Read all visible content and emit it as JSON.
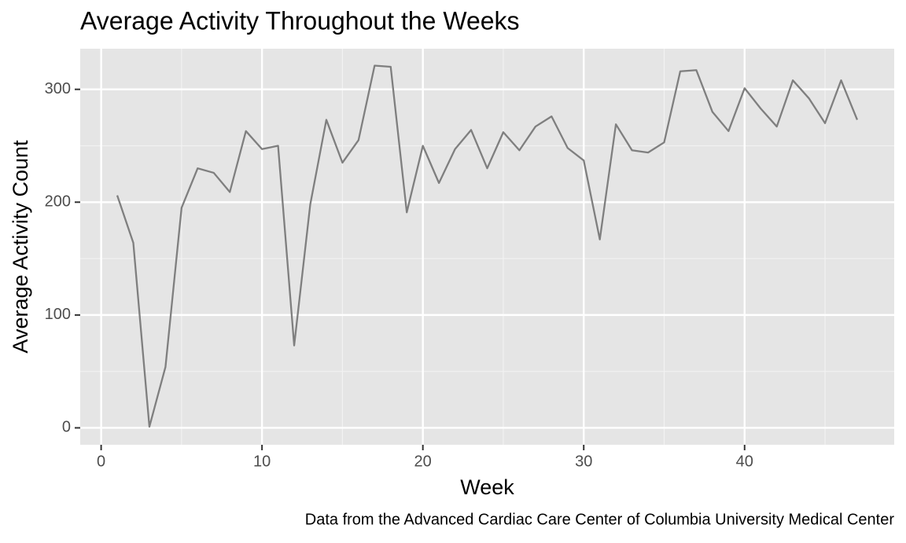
{
  "chart_data": {
    "type": "line",
    "title": "Average Activity Throughout the Weeks",
    "x_label": "Week",
    "y_label": "Average Activity Count",
    "caption": "Data from the Advanced Cardiac Care Center of Columbia University Medical Center",
    "x": [
      1,
      2,
      3,
      4,
      5,
      6,
      7,
      8,
      9,
      10,
      11,
      12,
      13,
      14,
      15,
      16,
      17,
      18,
      19,
      20,
      21,
      22,
      23,
      24,
      25,
      26,
      27,
      28,
      29,
      30,
      31,
      32,
      33,
      34,
      35,
      36,
      37,
      38,
      39,
      40,
      41,
      42,
      43,
      44,
      45,
      46,
      47
    ],
    "values": [
      206,
      164,
      1,
      54,
      195,
      230,
      226,
      209,
      263,
      247,
      250,
      73,
      198,
      273,
      235,
      255,
      321,
      320,
      191,
      250,
      217,
      247,
      264,
      230,
      262,
      246,
      267,
      276,
      248,
      237,
      167,
      269,
      246,
      244,
      253,
      316,
      317,
      280,
      263,
      301,
      283,
      267,
      308,
      292,
      270,
      308,
      273
    ],
    "color": "#7f7f7f",
    "xlim": [
      -1.3,
      49.3
    ],
    "xticks": [
      0,
      10,
      20,
      30,
      40
    ],
    "ylim": [
      -15,
      336
    ],
    "yticks": [
      0,
      100,
      200,
      300
    ],
    "grid": true
  }
}
